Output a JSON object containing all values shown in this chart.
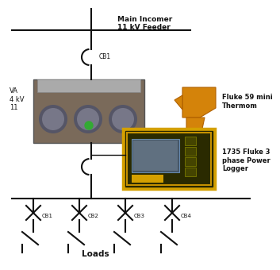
{
  "bg_color": "#ffffff",
  "main_incomer_text": "Main Incomer\n11 kV Feeder",
  "cb1_label": "CB1",
  "transformer_label": "VA\n4 kV\n11",
  "fluke59_label": "Fluke 59 mini\nThermom",
  "fluke1735_label": "1735 Fluke 3\nphase Power\nLogger",
  "loads_label": "Loads",
  "cb_labels": [
    "CB1",
    "CB2",
    "CB3",
    "CB4"
  ],
  "line_color": "#111111",
  "text_color": "#111111"
}
